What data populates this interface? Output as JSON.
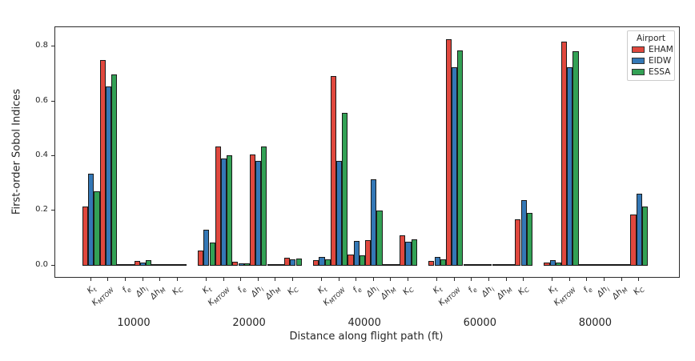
{
  "figure": {
    "ylabel": "First-order Sobol Indices",
    "xlabel": "Distance along flight path (ft)"
  },
  "legend": {
    "title": "Airport"
  },
  "chart_data": {
    "type": "bar",
    "title": "",
    "ylabel": "First-order Sobol Indices",
    "xlabel": "Distance along flight path (ft)",
    "ylim": [
      -0.042,
      0.871
    ],
    "yticks": [
      0.0,
      0.2,
      0.4,
      0.6,
      0.8
    ],
    "grid": false,
    "legend_title": "Airport",
    "legend_position": "upper right",
    "groups": [
      "10000",
      "20000",
      "40000",
      "60000",
      "80000"
    ],
    "params": [
      {
        "base": "K",
        "sub": "t"
      },
      {
        "base": "K",
        "sub": "MTOW"
      },
      {
        "base": "f",
        "sub": "e"
      },
      {
        "base": "Δh",
        "sub": "i"
      },
      {
        "base": "Δh",
        "sub": "M"
      },
      {
        "base": "K",
        "sub": "C"
      }
    ],
    "edge_color": "#1a1a1a",
    "series": [
      {
        "name": "EHAM",
        "color": "#e0483e",
        "values": [
          [
            0.215,
            0.75,
            0.002,
            0.016,
            0.001,
            0.003
          ],
          [
            0.056,
            0.435,
            0.013,
            0.405,
            0.001,
            0.027
          ],
          [
            0.019,
            0.693,
            0.041,
            0.092,
            0.001,
            0.111
          ],
          [
            0.017,
            0.826,
            0.004,
            -0.003,
            0.001,
            0.168
          ],
          [
            0.01,
            0.819,
            0.002,
            0.003,
            0.001,
            0.185
          ]
        ]
      },
      {
        "name": "EIDW",
        "color": "#3478b6",
        "values": [
          [
            0.335,
            0.655,
            0.002,
            0.011,
            0.001,
            0.003
          ],
          [
            0.13,
            0.392,
            0.008,
            0.382,
            0.001,
            0.022
          ],
          [
            0.031,
            0.382,
            0.09,
            0.316,
            0.001,
            0.086
          ],
          [
            0.03,
            0.724,
            0.003,
            -0.002,
            0.001,
            0.238
          ],
          [
            0.02,
            0.724,
            0.002,
            0.003,
            0.001,
            0.263
          ]
        ]
      },
      {
        "name": "ESSA",
        "color": "#33a155",
        "values": [
          [
            0.27,
            0.699,
            0.002,
            0.02,
            0.001,
            0.004
          ],
          [
            0.085,
            0.403,
            0.008,
            0.434,
            0.001,
            0.024
          ],
          [
            0.023,
            0.557,
            0.038,
            0.202,
            0.001,
            0.096
          ],
          [
            0.021,
            0.785,
            0.005,
            -0.003,
            0.001,
            0.192
          ],
          [
            0.012,
            0.782,
            0.002,
            0.003,
            0.001,
            0.215
          ]
        ]
      }
    ]
  }
}
